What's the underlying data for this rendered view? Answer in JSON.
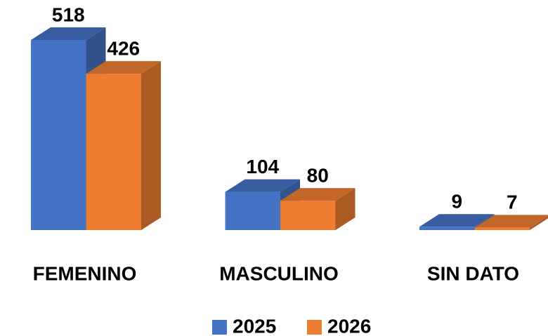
{
  "chart_data": {
    "type": "bar3d",
    "categories": [
      "FEMENINO",
      "MASCULINO",
      "SIN DATO"
    ],
    "series": [
      {
        "name": "2025",
        "color": "#4472c4",
        "values": [
          518,
          104,
          9
        ]
      },
      {
        "name": "2026",
        "color": "#ed7d31",
        "values": [
          426,
          80,
          7
        ]
      }
    ],
    "legend": "bottom"
  }
}
